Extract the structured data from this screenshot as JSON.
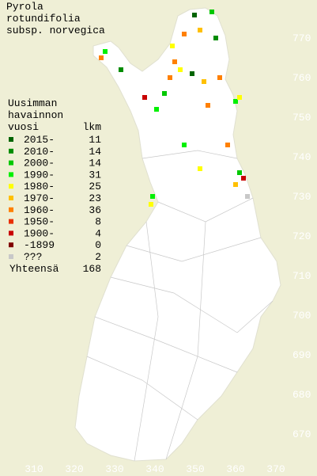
{
  "title": [
    "Pyrola",
    "rotundifolia",
    "subsp. norvegica"
  ],
  "legend": {
    "header": [
      "Uusimman",
      "havainnon",
      "vuosi"
    ],
    "count_header": "lkm",
    "entries": [
      {
        "label": "2015-",
        "count": 11,
        "color": "#006400"
      },
      {
        "label": "2010-",
        "count": 14,
        "color": "#008c00"
      },
      {
        "label": "2000-",
        "count": 14,
        "color": "#00c800"
      },
      {
        "label": "1990-",
        "count": 31,
        "color": "#00f000"
      },
      {
        "label": "1980-",
        "count": 25,
        "color": "#ffff00"
      },
      {
        "label": "1970-",
        "count": 23,
        "color": "#ffc000"
      },
      {
        "label": "1960-",
        "count": 36,
        "color": "#ff8000"
      },
      {
        "label": "1950-",
        "count": 8,
        "color": "#e83000"
      },
      {
        "label": "1900-",
        "count": 4,
        "color": "#c80000"
      },
      {
        "label": "-1899",
        "count": 0,
        "color": "#800000"
      },
      {
        "label": "???",
        "count": 2,
        "color": "#c8c8c8"
      }
    ],
    "total_label": "Yhteensä",
    "total": 168
  },
  "grid": {
    "northing": [
      770,
      760,
      750,
      740,
      730,
      720,
      710,
      700,
      690,
      680,
      670
    ],
    "easting": [
      310,
      320,
      330,
      340,
      350,
      360,
      370
    ]
  }
}
